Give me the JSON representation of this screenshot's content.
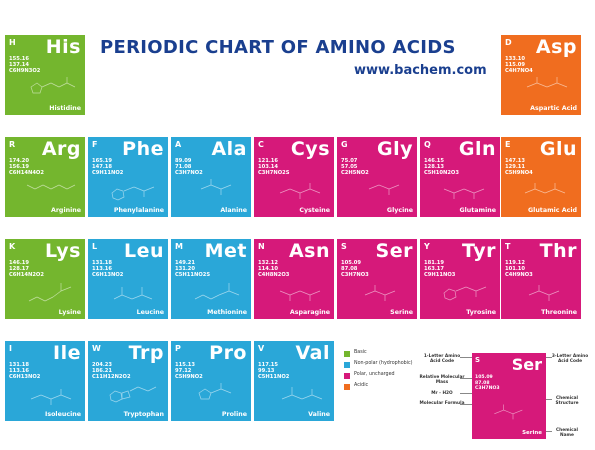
{
  "header": {
    "title": "PERIODIC CHART OF AMINO ACIDS",
    "url": "www.bachem.com"
  },
  "colors": {
    "basic": "#74b62e",
    "nonpolar": "#2aa7d8",
    "polar": "#d6197a",
    "acidic": "#f06d1f",
    "title": "#1a3f8f"
  },
  "tiles": {
    "his": {
      "letter": "H",
      "abbr": "His",
      "d1": "155.16",
      "d2": "137.14",
      "formula": "C6H9N3O2",
      "name": "Histidine"
    },
    "asp": {
      "letter": "D",
      "abbr": "Asp",
      "d1": "133.10",
      "d2": "115.09",
      "formula": "C4H7NO4",
      "name": "Aspartic Acid"
    },
    "arg": {
      "letter": "R",
      "abbr": "Arg",
      "d1": "174.20",
      "d2": "156.19",
      "formula": "C6H14N4O2",
      "name": "Arginine"
    },
    "phe": {
      "letter": "F",
      "abbr": "Phe",
      "d1": "165.19",
      "d2": "147.18",
      "formula": "C9H11NO2",
      "name": "Phenylalanine"
    },
    "ala": {
      "letter": "A",
      "abbr": "Ala",
      "d1": "89.09",
      "d2": "71.08",
      "formula": "C3H7NO2",
      "name": "Alanine"
    },
    "cys": {
      "letter": "C",
      "abbr": "Cys",
      "d1": "121.16",
      "d2": "103.14",
      "formula": "C3H7NO2S",
      "name": "Cysteine"
    },
    "gly": {
      "letter": "G",
      "abbr": "Gly",
      "d1": "75.07",
      "d2": "57.05",
      "formula": "C2H5NO2",
      "name": "Glycine"
    },
    "gln": {
      "letter": "Q",
      "abbr": "Gln",
      "d1": "146.15",
      "d2": "128.13",
      "formula": "C5H10N2O3",
      "name": "Glutamine"
    },
    "glu": {
      "letter": "E",
      "abbr": "Glu",
      "d1": "147.13",
      "d2": "129.11",
      "formula": "C5H9NO4",
      "name": "Glutamic Acid"
    },
    "lys": {
      "letter": "K",
      "abbr": "Lys",
      "d1": "146.19",
      "d2": "128.17",
      "formula": "C6H14N2O2",
      "name": "Lysine"
    },
    "leu": {
      "letter": "L",
      "abbr": "Leu",
      "d1": "131.18",
      "d2": "113.16",
      "formula": "C6H13NO2",
      "name": "Leucine"
    },
    "met": {
      "letter": "M",
      "abbr": "Met",
      "d1": "149.21",
      "d2": "131.20",
      "formula": "C5H11NO2S",
      "name": "Methionine"
    },
    "asn": {
      "letter": "N",
      "abbr": "Asn",
      "d1": "132.12",
      "d2": "114.10",
      "formula": "C4H8N2O3",
      "name": "Asparagine"
    },
    "ser": {
      "letter": "S",
      "abbr": "Ser",
      "d1": "105.09",
      "d2": "87.08",
      "formula": "C3H7NO3",
      "name": "Serine"
    },
    "tyr": {
      "letter": "Y",
      "abbr": "Tyr",
      "d1": "181.19",
      "d2": "163.17",
      "formula": "C9H11NO3",
      "name": "Tyrosine"
    },
    "thr": {
      "letter": "T",
      "abbr": "Thr",
      "d1": "119.12",
      "d2": "101.10",
      "formula": "C4H9NO3",
      "name": "Threonine"
    },
    "ile": {
      "letter": "I",
      "abbr": "Ile",
      "d1": "131.18",
      "d2": "113.16",
      "formula": "C6H13NO2",
      "name": "Isoleucine"
    },
    "trp": {
      "letter": "W",
      "abbr": "Trp",
      "d1": "204.23",
      "d2": "186.21",
      "formula": "C11H12N2O2",
      "name": "Tryptophan"
    },
    "pro": {
      "letter": "P",
      "abbr": "Pro",
      "d1": "115.13",
      "d2": "97.12",
      "formula": "C5H9NO2",
      "name": "Proline"
    },
    "val": {
      "letter": "V",
      "abbr": "Val",
      "d1": "117.15",
      "d2": "99.13",
      "formula": "C5H11NO2",
      "name": "Valine"
    }
  },
  "legend": {
    "basic": "Basic",
    "nonpolar": "Non-polar (hydrophobic)",
    "polar": "Polar, uncharged",
    "acidic": "Acidic"
  },
  "key": {
    "one_letter": "1-Letter Amino Acid Code",
    "three_letter": "3-Letter Amino Acid Code",
    "rel_mass": "Relative Molecular Mass",
    "mr_minus_h2o": "Mr - H2O",
    "formula": "Molecular Formula",
    "structure": "Chemical Structure",
    "chem_name": "Chemical Name",
    "tile": {
      "letter": "S",
      "abbr": "Ser",
      "d1": "105.09",
      "d2": "87.08",
      "formula": "C3H7NO3",
      "name": "Serine"
    }
  }
}
